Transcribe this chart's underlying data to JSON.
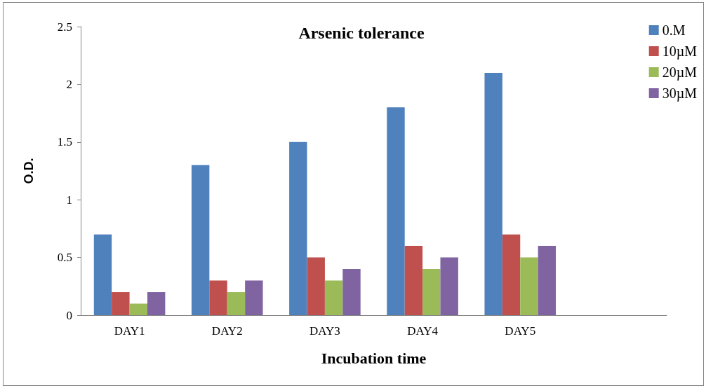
{
  "chart_data": {
    "type": "bar",
    "title": "Arsenic tolerance",
    "xlabel": "Incubation time",
    "ylabel": "O.D.",
    "categories": [
      "DAY1",
      "DAY2",
      "DAY3",
      "DAY4",
      "DAY5",
      null
    ],
    "series": [
      {
        "name": "0.M",
        "color": "#4f81bd",
        "values": [
          0.7,
          1.3,
          1.5,
          1.8,
          2.1,
          null
        ]
      },
      {
        "name": "10µM",
        "color": "#c0504d",
        "values": [
          0.2,
          0.3,
          0.5,
          0.6,
          0.7,
          null
        ]
      },
      {
        "name": "20µM",
        "color": "#9bbb59",
        "values": [
          0.1,
          0.2,
          0.3,
          0.4,
          0.5,
          null
        ]
      },
      {
        "name": "30µM",
        "color": "#8064a2",
        "values": [
          0.2,
          0.3,
          0.4,
          0.5,
          0.6,
          null
        ]
      }
    ],
    "ylim": [
      0,
      2.5
    ],
    "yticks": [
      0,
      0.5,
      1,
      1.5,
      2,
      2.5
    ],
    "grid": false,
    "legend": "top right"
  }
}
